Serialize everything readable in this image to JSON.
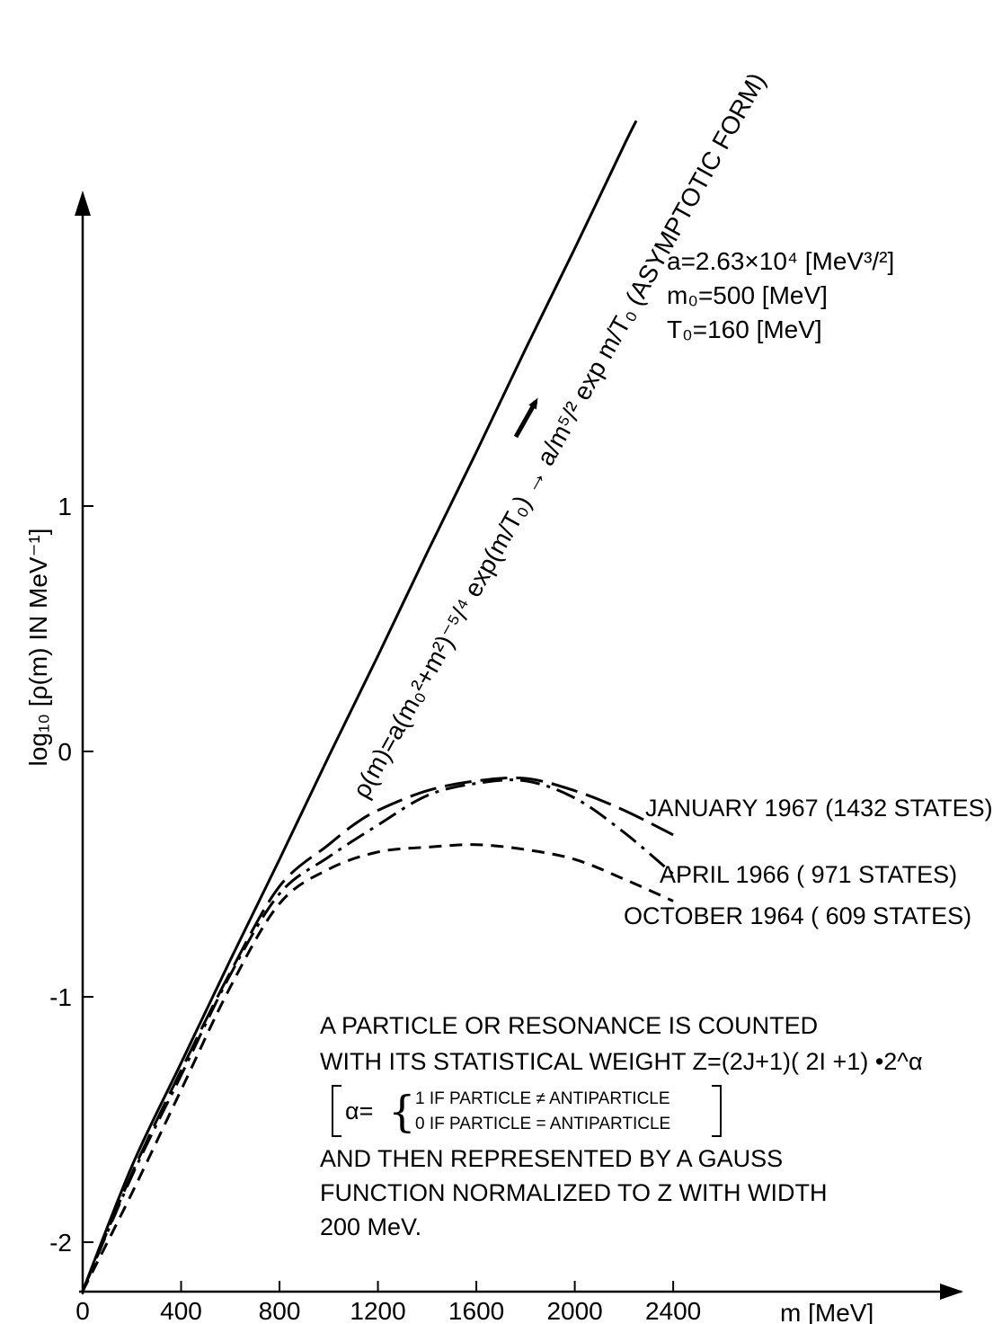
{
  "chart_data": {
    "type": "line",
    "xlabel": "m [MeV]",
    "ylabel": "log₁₀ [ρ(m) IN MeV⁻¹]",
    "x_ticks": [
      "0",
      "400",
      "800",
      "1200",
      "1600",
      "2000",
      "2400"
    ],
    "y_ticks": [
      "-2",
      "-1",
      "0",
      "1"
    ],
    "xlim": [
      0,
      3500
    ],
    "ylim": [
      -2.2,
      2.3
    ],
    "asymptotic": {
      "formula": "ρ(m)=a(m₀²+m²)⁻⁵/⁴ exp(m/T₀) → a/m⁵/² exp m/T₀ (ASYMPTOTIC FORM)",
      "x": [
        0,
        200,
        400,
        600,
        800,
        1000,
        1200,
        1400,
        1600,
        1800,
        2000,
        2200,
        2250
      ],
      "y": [
        -2.2,
        -1.69,
        -1.27,
        -0.85,
        -0.44,
        -0.02,
        0.39,
        0.81,
        1.22,
        1.64,
        2.05,
        2.47,
        2.57
      ]
    },
    "series": [
      {
        "name": "JANUARY 1967 (1432 STATES)",
        "style": "long-dash",
        "x": [
          0,
          200,
          400,
          600,
          800,
          1000,
          1100,
          1200,
          1400,
          1600,
          1800,
          2000,
          2200,
          2400
        ],
        "y": [
          -2.2,
          -1.72,
          -1.3,
          -0.9,
          -0.55,
          -0.38,
          -0.3,
          -0.24,
          -0.16,
          -0.12,
          -0.11,
          -0.16,
          -0.24,
          -0.34
        ]
      },
      {
        "name": "APRIL 1966 ( 971 STATES)",
        "style": "dash-dot",
        "x": [
          0,
          200,
          400,
          600,
          800,
          1000,
          1200,
          1400,
          1600,
          1800,
          2000,
          2200,
          2400
        ],
        "y": [
          -2.2,
          -1.73,
          -1.32,
          -0.91,
          -0.58,
          -0.43,
          -0.3,
          -0.18,
          -0.13,
          -0.12,
          -0.19,
          -0.33,
          -0.5
        ]
      },
      {
        "name": "OCTOBER 1964 ( 609 STATES)",
        "style": "short-dash",
        "x": [
          0,
          200,
          400,
          600,
          800,
          1000,
          1200,
          1400,
          1600,
          1800,
          2000,
          2200,
          2400
        ],
        "y": [
          -2.2,
          -1.8,
          -1.38,
          -0.96,
          -0.62,
          -0.48,
          -0.41,
          -0.39,
          -0.38,
          -0.4,
          -0.44,
          -0.52,
          -0.61
        ]
      }
    ],
    "parameters": [
      "a=2.63×10⁴ [MeV³/²]",
      "m₀=500 [MeV]",
      "T₀=160 [MeV]"
    ],
    "note": {
      "line1": "A PARTICLE OR RESONANCE IS COUNTED",
      "line2": "WITH ITS STATISTICAL WEIGHT Z=(2J+1)( 2I +1) •2^α",
      "alpha_symbol": "α=",
      "alpha_case1": "1 IF PARTICLE ≠ ANTIPARTICLE",
      "alpha_case2": "0 IF PARTICLE = ANTIPARTICLE",
      "line3": "AND THEN REPRESENTED BY A GAUSS",
      "line4": "FUNCTION NORMALIZED TO Z WITH WIDTH",
      "line5": "200 MeV."
    }
  }
}
